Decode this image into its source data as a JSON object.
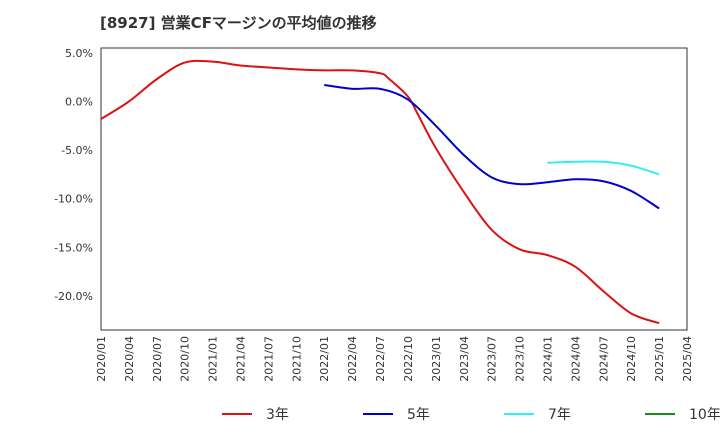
{
  "title": "[8927]  営業CFマージンの平均値の推移",
  "chart_data": {
    "type": "line",
    "title": "[8927]  営業CFマージンの平均値の推移",
    "xlabel": "",
    "ylabel": "",
    "ylim": [
      -23.5,
      5.5
    ],
    "y_ticks": [
      5.0,
      0.0,
      -5.0,
      -10.0,
      -15.0,
      -20.0
    ],
    "y_tick_labels": [
      "5.0%",
      "0.0%",
      "-5.0%",
      "-10.0%",
      "-15.0%",
      "-20.0%"
    ],
    "x_tick_labels": [
      "2020/01",
      "2020/04",
      "2020/07",
      "2020/10",
      "2021/01",
      "2021/04",
      "2021/07",
      "2021/10",
      "2022/01",
      "2022/04",
      "2022/07",
      "2022/10",
      "2023/01",
      "2023/04",
      "2023/07",
      "2023/10",
      "2024/01",
      "2024/04",
      "2024/07",
      "2024/10",
      "2025/01",
      "2025/04"
    ],
    "grid": true,
    "legend_position": "bottom",
    "series": [
      {
        "name": "3年",
        "color": "#dd1111",
        "points": [
          [
            "2020/01",
            -1.8
          ],
          [
            "2020/04",
            0.0
          ],
          [
            "2020/07",
            2.3
          ],
          [
            "2020/10",
            4.0
          ],
          [
            "2021/01",
            4.1
          ],
          [
            "2021/04",
            3.7
          ],
          [
            "2021/07",
            3.5
          ],
          [
            "2021/10",
            3.3
          ],
          [
            "2022/01",
            3.2
          ],
          [
            "2022/04",
            3.2
          ],
          [
            "2022/07",
            2.9
          ],
          [
            "2022/08",
            2.3
          ],
          [
            "2022/10",
            0.5
          ],
          [
            "2022/11",
            -1.2
          ],
          [
            "2023/01",
            -4.8
          ],
          [
            "2023/04",
            -9.3
          ],
          [
            "2023/07",
            -13.2
          ],
          [
            "2023/10",
            -15.2
          ],
          [
            "2024/01",
            -15.8
          ],
          [
            "2024/04",
            -17.0
          ],
          [
            "2024/07",
            -19.5
          ],
          [
            "2024/10",
            -21.8
          ],
          [
            "2025/01",
            -22.8
          ]
        ]
      },
      {
        "name": "5年",
        "color": "#0000cc",
        "points": [
          [
            "2022/01",
            1.7
          ],
          [
            "2022/04",
            1.3
          ],
          [
            "2022/07",
            1.3
          ],
          [
            "2022/10",
            0.2
          ],
          [
            "2023/01",
            -2.5
          ],
          [
            "2023/04",
            -5.5
          ],
          [
            "2023/07",
            -7.8
          ],
          [
            "2023/10",
            -8.5
          ],
          [
            "2024/01",
            -8.3
          ],
          [
            "2024/04",
            -8.0
          ],
          [
            "2024/07",
            -8.2
          ],
          [
            "2024/10",
            -9.2
          ],
          [
            "2025/01",
            -11.0
          ]
        ]
      },
      {
        "name": "7年",
        "color": "#33eeee",
        "points": [
          [
            "2024/01",
            -6.3
          ],
          [
            "2024/04",
            -6.2
          ],
          [
            "2024/07",
            -6.2
          ],
          [
            "2024/10",
            -6.6
          ],
          [
            "2025/01",
            -7.5
          ]
        ]
      },
      {
        "name": "10年",
        "color": "#228822",
        "points": []
      }
    ]
  }
}
